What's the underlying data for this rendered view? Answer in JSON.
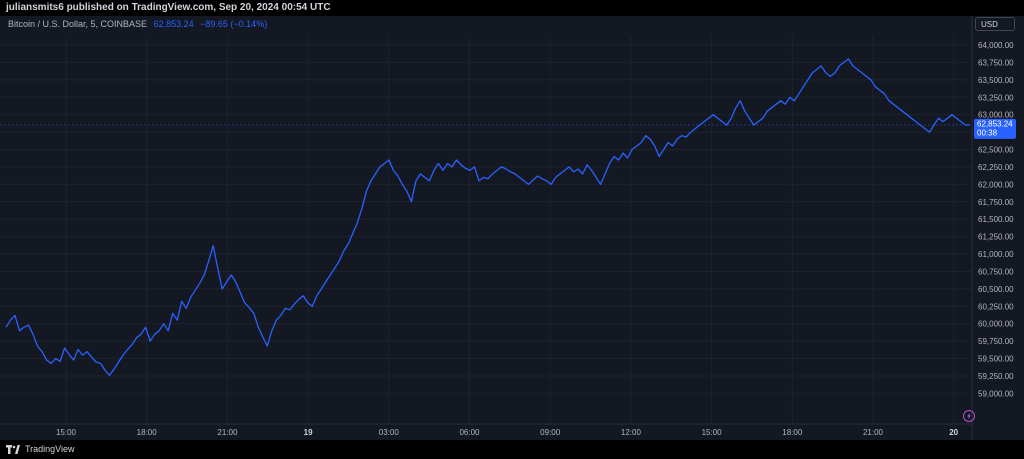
{
  "header": {
    "publisher": "juliansmits6 published on TradingView.com, Sep 20, 2024 00:54 UTC"
  },
  "legend": {
    "symbol": "Bitcoin / U.S. Dollar, 5, COINBASE",
    "last_price": "62,853.24",
    "change": "−89.65 (−0.14%)"
  },
  "currency": "USD",
  "price_label": {
    "price": "62,853.24",
    "countdown": "00:38"
  },
  "footer": {
    "brand": "TradingView"
  },
  "colors": {
    "line": "#2962ff",
    "background": "#141823",
    "grid": "#1e222d",
    "text": "#b2b5be"
  },
  "chart_data": {
    "type": "line",
    "ylim": [
      58750,
      64250
    ],
    "x_ticks": [
      "15:00",
      "18:00",
      "21:00",
      "19",
      "03:00",
      "06:00",
      "09:00",
      "12:00",
      "15:00",
      "18:00",
      "21:00",
      "20"
    ],
    "y_ticks": [
      "64,000.00",
      "63,750.00",
      "63,500.00",
      "63,250.00",
      "63,000.00",
      "62,750.00",
      "62,500.00",
      "62,250.00",
      "62,000.00",
      "61,750.00",
      "61,500.00",
      "61,250.00",
      "61,000.00",
      "60,750.00",
      "60,500.00",
      "60,250.00",
      "60,000.00",
      "59,750.00",
      "59,500.00",
      "59,250.00",
      "59,000.00"
    ],
    "y_values": [
      59950,
      60050,
      60120,
      59900,
      59950,
      59980,
      59850,
      59680,
      59600,
      59480,
      59430,
      59500,
      59460,
      59650,
      59560,
      59480,
      59630,
      59550,
      59600,
      59520,
      59450,
      59430,
      59330,
      59260,
      59350,
      59450,
      59550,
      59630,
      59700,
      59800,
      59850,
      59950,
      59750,
      59850,
      59900,
      60000,
      59900,
      60150,
      60050,
      60320,
      60220,
      60380,
      60480,
      60580,
      60700,
      60900,
      61120,
      60800,
      60500,
      60600,
      60700,
      60600,
      60450,
      60300,
      60230,
      60150,
      59950,
      59810,
      59680,
      59900,
      60050,
      60120,
      60220,
      60200,
      60280,
      60350,
      60400,
      60300,
      60250,
      60400,
      60500,
      60600,
      60700,
      60800,
      60900,
      61050,
      61150,
      61300,
      61450,
      61650,
      61900,
      62050,
      62150,
      62250,
      62300,
      62350,
      62200,
      62120,
      62000,
      61900,
      61750,
      62050,
      62150,
      62100,
      62050,
      62200,
      62300,
      62200,
      62300,
      62250,
      62350,
      62280,
      62230,
      62200,
      62250,
      62050,
      62100,
      62080,
      62150,
      62200,
      62250,
      62220,
      62180,
      62150,
      62100,
      62050,
      62000,
      62060,
      62120,
      62080,
      62050,
      62000,
      62100,
      62150,
      62200,
      62250,
      62180,
      62220,
      62150,
      62280,
      62200,
      62100,
      62000,
      62150,
      62300,
      62400,
      62350,
      62450,
      62380,
      62500,
      62550,
      62600,
      62700,
      62650,
      62550,
      62400,
      62500,
      62600,
      62550,
      62650,
      62700,
      62680,
      62750,
      62800,
      62850,
      62900,
      62950,
      63000,
      62950,
      62900,
      62850,
      62950,
      63100,
      63200,
      63050,
      62950,
      62850,
      62900,
      62950,
      63050,
      63100,
      63150,
      63200,
      63150,
      63250,
      63200,
      63300,
      63400,
      63500,
      63600,
      63650,
      63700,
      63600,
      63550,
      63600,
      63700,
      63750,
      63800,
      63700,
      63650,
      63600,
      63550,
      63500,
      63400,
      63350,
      63300,
      63200,
      63150,
      63100,
      63050,
      63000,
      62950,
      62900,
      62850,
      62800,
      62750,
      62850,
      62950,
      62900,
      62950,
      63000,
      62950,
      62900,
      62850,
      62853.24
    ]
  }
}
